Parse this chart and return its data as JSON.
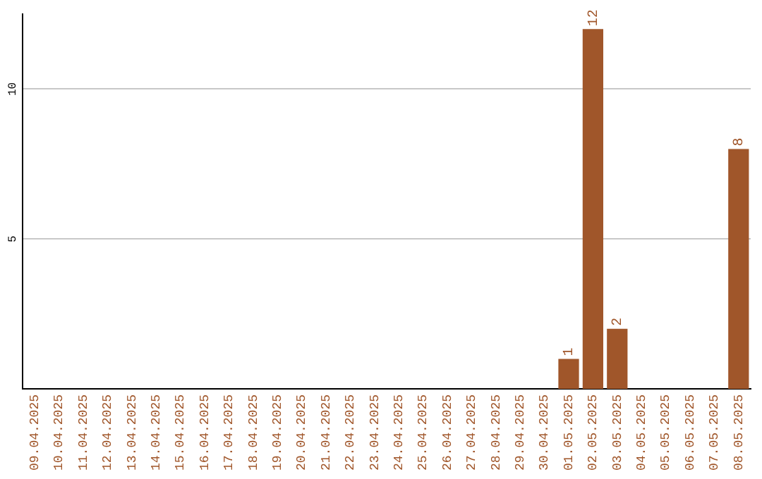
{
  "chart_data": {
    "type": "bar",
    "categories": [
      "09.04.2025",
      "10.04.2025",
      "11.04.2025",
      "12.04.2025",
      "13.04.2025",
      "14.04.2025",
      "15.04.2025",
      "16.04.2025",
      "17.04.2025",
      "18.04.2025",
      "19.04.2025",
      "20.04.2025",
      "21.04.2025",
      "22.04.2025",
      "23.04.2025",
      "24.04.2025",
      "25.04.2025",
      "26.04.2025",
      "27.04.2025",
      "28.04.2025",
      "29.04.2025",
      "30.04.2025",
      "01.05.2025",
      "02.05.2025",
      "03.05.2025",
      "04.05.2025",
      "05.05.2025",
      "06.05.2025",
      "07.05.2025",
      "08.05.2025"
    ],
    "values": [
      0,
      0,
      0,
      0,
      0,
      0,
      0,
      0,
      0,
      0,
      0,
      0,
      0,
      0,
      0,
      0,
      0,
      0,
      0,
      0,
      0,
      0,
      1,
      12,
      2,
      0,
      0,
      0,
      0,
      8
    ],
    "value_labels": [
      null,
      null,
      null,
      null,
      null,
      null,
      null,
      null,
      null,
      null,
      null,
      null,
      null,
      null,
      null,
      null,
      null,
      null,
      null,
      null,
      null,
      null,
      "1",
      "12",
      "2",
      null,
      null,
      null,
      null,
      "8"
    ],
    "color": "#a0562a",
    "ylim": [
      0,
      12.5
    ],
    "yticks": [
      5,
      10
    ],
    "grid": "y",
    "legend": false
  }
}
